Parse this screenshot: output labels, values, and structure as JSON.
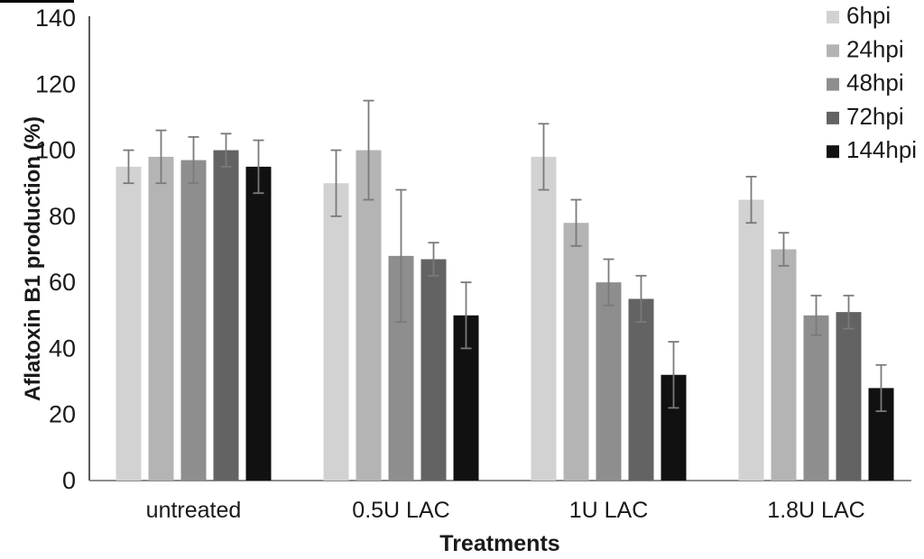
{
  "figure": {
    "background": "#ffffff",
    "border_fragment_color": "#000000"
  },
  "chart_data": {
    "type": "bar",
    "title": "",
    "xlabel": "Treatments",
    "ylabel": "Aflatoxin B1 production (%)",
    "ylim": [
      0,
      140
    ],
    "yticks": [
      0,
      20,
      40,
      60,
      80,
      100,
      120,
      140
    ],
    "grid": false,
    "legend_position": "top-right",
    "categories": [
      "untreated",
      "0.5U LAC",
      "1U LAC",
      "1.8U LAC"
    ],
    "series": [
      {
        "name": "6hpi",
        "color": "#d2d2d2",
        "values": [
          95,
          90,
          98,
          85
        ],
        "errors": [
          5,
          10,
          10,
          7
        ]
      },
      {
        "name": "24hpi",
        "color": "#b4b4b4",
        "values": [
          98,
          100,
          78,
          70
        ],
        "errors": [
          8,
          15,
          7,
          5
        ]
      },
      {
        "name": "48hpi",
        "color": "#8e8e8e",
        "values": [
          97,
          68,
          60,
          50
        ],
        "errors": [
          7,
          20,
          7,
          6
        ]
      },
      {
        "name": "72hpi",
        "color": "#636363",
        "values": [
          100,
          67,
          55,
          51
        ],
        "errors": [
          5,
          5,
          7,
          5
        ]
      },
      {
        "name": "144hpi",
        "color": "#111111",
        "values": [
          95,
          50,
          32,
          28
        ],
        "errors": [
          8,
          10,
          10,
          7
        ]
      }
    ],
    "error_bar_color": "#7a7a7a",
    "axis_color": "#595959",
    "baseline_color": "#8c8c8c",
    "text_color": "#1a1a1a"
  }
}
